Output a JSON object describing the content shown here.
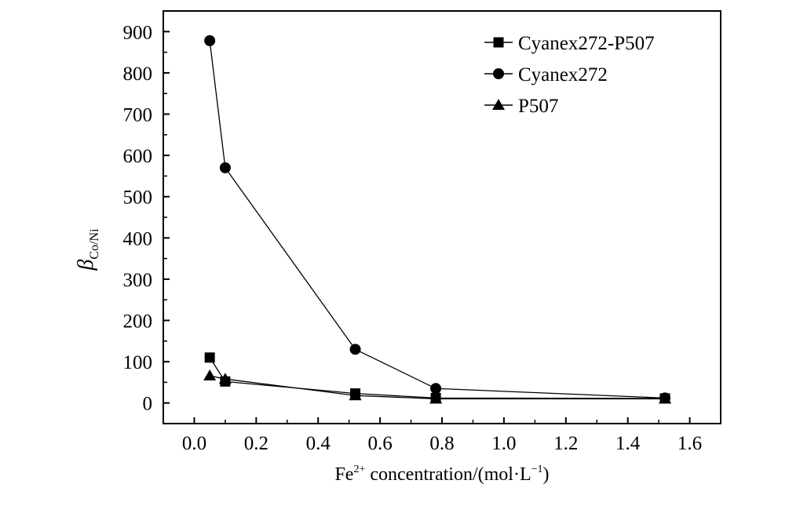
{
  "chart_data": {
    "type": "line",
    "xlabel": {
      "base": "Fe",
      "sup": "2+",
      "mid": " concentration/(mol·L",
      "sup2": "−1",
      "end": ")"
    },
    "ylabel": {
      "symbol": "β",
      "sub": "Co/Ni"
    },
    "xlim": [
      -0.1,
      1.7
    ],
    "ylim": [
      -50,
      950
    ],
    "xticks": [
      "0.0",
      "0.2",
      "0.4",
      "0.6",
      "0.8",
      "1.0",
      "1.2",
      "1.4",
      "1.6"
    ],
    "yticks": [
      "0",
      "100",
      "200",
      "300",
      "400",
      "500",
      "600",
      "700",
      "800",
      "900"
    ],
    "legend_position": "top-right",
    "series": [
      {
        "name": "Cyanex272-P507",
        "marker": "square",
        "x": [
          0.05,
          0.1,
          0.52,
          0.78,
          1.52
        ],
        "y": [
          110,
          52,
          23,
          12,
          11
        ]
      },
      {
        "name": "Cyanex272",
        "marker": "circle",
        "x": [
          0.05,
          0.1,
          0.52,
          0.78,
          1.52
        ],
        "y": [
          878,
          570,
          130,
          35,
          12
        ]
      },
      {
        "name": "P507",
        "marker": "triangle",
        "x": [
          0.05,
          0.1,
          0.52,
          0.78,
          1.52
        ],
        "y": [
          66,
          58,
          18,
          10,
          10
        ]
      }
    ]
  }
}
